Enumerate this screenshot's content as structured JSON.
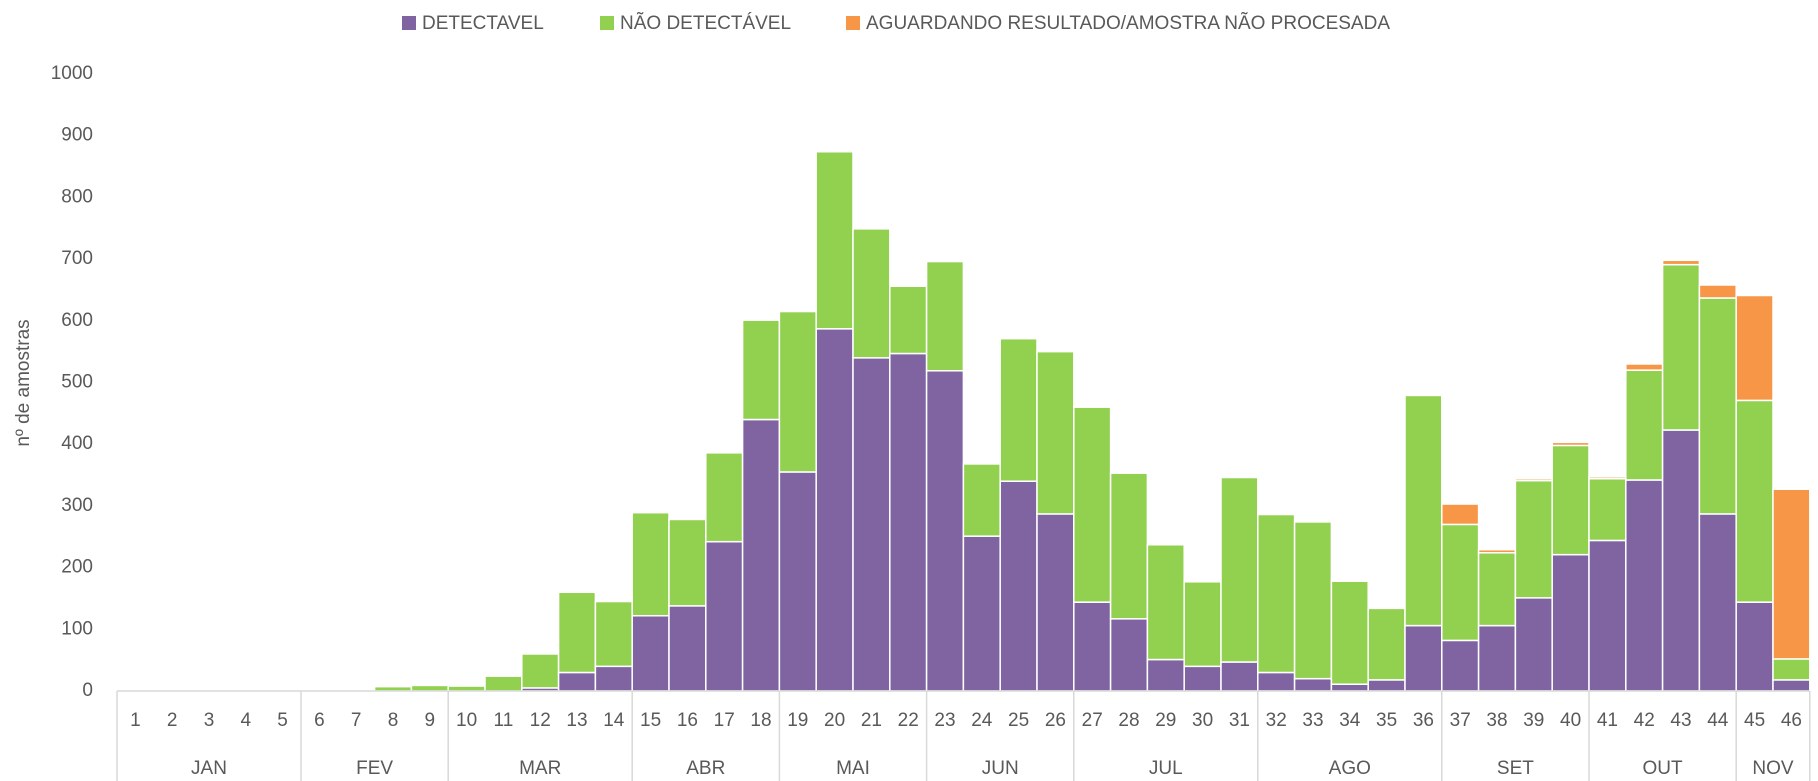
{
  "chart_data": {
    "type": "stacked_bar",
    "y_label": "nº de amostras",
    "categories": [
      "1",
      "2",
      "3",
      "4",
      "5",
      "6",
      "7",
      "8",
      "9",
      "10",
      "11",
      "12",
      "13",
      "14",
      "15",
      "16",
      "17",
      "18",
      "19",
      "20",
      "21",
      "22",
      "23",
      "24",
      "25",
      "26",
      "27",
      "28",
      "29",
      "30",
      "31",
      "32",
      "33",
      "34",
      "35",
      "36",
      "37",
      "38",
      "39",
      "40",
      "41",
      "42",
      "43",
      "44",
      "45",
      "46"
    ],
    "months": [
      "JAN",
      "JAN",
      "JAN",
      "JAN",
      "JAN",
      "FEV",
      "FEV",
      "FEV",
      "FEV",
      "MAR",
      "MAR",
      "MAR",
      "MAR",
      "MAR",
      "ABR",
      "ABR",
      "ABR",
      "ABR",
      "MAI",
      "MAI",
      "MAI",
      "MAI",
      "JUN",
      "JUN",
      "JUN",
      "JUN",
      "JUL",
      "JUL",
      "JUL",
      "JUL",
      "JUL",
      "AGO",
      "AGO",
      "AGO",
      "AGO",
      "AGO",
      "SET",
      "SET",
      "SET",
      "SET",
      "OUT",
      "OUT",
      "OUT",
      "OUT",
      "NOV",
      "NOV"
    ],
    "series": [
      {
        "name": "DETECTAVEL",
        "color": "#8064a2",
        "values": [
          0,
          0,
          0,
          0,
          0,
          0,
          0,
          0,
          0,
          0,
          0,
          5,
          30,
          40,
          122,
          138,
          242,
          440,
          355,
          587,
          540,
          547,
          519,
          251,
          340,
          287,
          144,
          117,
          51,
          40,
          47,
          30,
          20,
          11,
          18,
          106,
          82,
          106,
          151,
          221,
          244,
          342,
          423,
          287,
          144,
          18
        ]
      },
      {
        "name": "NÃO DETECTÁVEL",
        "color": "#92d050",
        "values": [
          0,
          0,
          0,
          0,
          0,
          2,
          1,
          7,
          9,
          8,
          24,
          55,
          130,
          105,
          167,
          140,
          144,
          161,
          260,
          287,
          209,
          109,
          177,
          117,
          231,
          263,
          316,
          236,
          186,
          137,
          299,
          256,
          254,
          167,
          116,
          373,
          188,
          118,
          190,
          177,
          100,
          178,
          268,
          350,
          327,
          34
        ]
      },
      {
        "name": "AGUARDANDO RESULTADO/AMOSTRA NÃO PROCESADA",
        "color": "#f79646",
        "values": [
          0,
          0,
          0,
          0,
          0,
          0,
          0,
          0,
          0,
          0,
          0,
          0,
          0,
          0,
          0,
          0,
          0,
          0,
          0,
          0,
          0,
          0,
          0,
          0,
          0,
          0,
          0,
          0,
          0,
          0,
          0,
          0,
          0,
          2,
          2,
          0,
          33,
          5,
          3,
          5,
          3,
          10,
          7,
          21,
          170,
          275
        ]
      }
    ],
    "ylim": [
      0,
      1000
    ],
    "yticks": [
      0,
      100,
      200,
      300,
      400,
      500,
      600,
      700,
      800,
      900,
      1000
    ],
    "legend": "top"
  }
}
